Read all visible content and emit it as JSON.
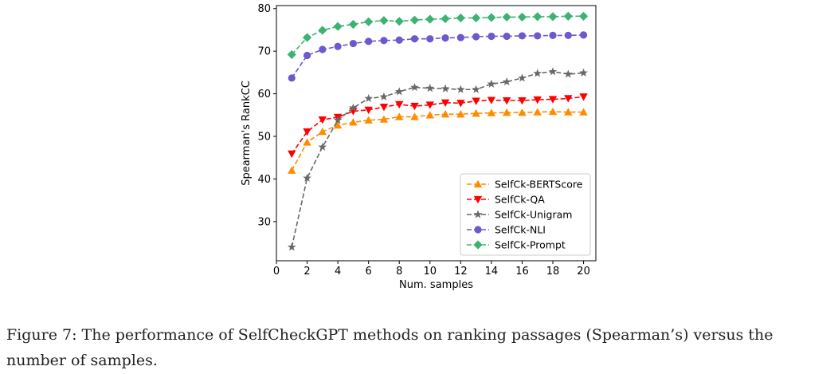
{
  "chart_data": {
    "type": "line",
    "xlabel": "Num. samples",
    "ylabel": "Spearman's RankCC",
    "xlim": [
      0,
      20.8
    ],
    "ylim": [
      20.8,
      80.7
    ],
    "xticks": [
      "0",
      "2",
      "4",
      "6",
      "8",
      "10",
      "12",
      "14",
      "16",
      "18",
      "20"
    ],
    "yticks": [
      "30",
      "40",
      "50",
      "60",
      "70",
      "80"
    ],
    "legend_position": "lower-right",
    "x": [
      1,
      2,
      3,
      4,
      5,
      6,
      7,
      8,
      9,
      10,
      11,
      12,
      13,
      14,
      15,
      16,
      17,
      18,
      19,
      20
    ],
    "series": [
      {
        "name": "SelfCk-BERTScore",
        "color": "#ff8c00",
        "marker": "triangle-up",
        "values": [
          42.0,
          48.6,
          51.1,
          52.6,
          53.3,
          53.8,
          54.0,
          54.6,
          54.6,
          55.0,
          55.2,
          55.2,
          55.4,
          55.5,
          55.6,
          55.6,
          55.7,
          55.8,
          55.7,
          55.7
        ]
      },
      {
        "name": "SelfCk-QA",
        "color": "#ff0000",
        "marker": "triangle-down",
        "values": [
          45.9,
          51.1,
          53.9,
          54.5,
          55.9,
          56.2,
          56.9,
          57.5,
          57.1,
          57.4,
          57.9,
          57.8,
          58.3,
          58.5,
          58.4,
          58.4,
          58.6,
          58.7,
          58.9,
          59.3
        ]
      },
      {
        "name": "SelfCk-Unigram",
        "color": "#696969",
        "marker": "star",
        "values": [
          24.0,
          40.2,
          47.5,
          53.8,
          56.7,
          58.9,
          59.3,
          60.5,
          61.5,
          61.3,
          61.2,
          61.0,
          61.0,
          62.3,
          62.8,
          63.7,
          64.8,
          65.2,
          64.6,
          64.9
        ]
      },
      {
        "name": "SelfCk-NLI",
        "color": "#6a5acd",
        "marker": "circle",
        "values": [
          63.7,
          69.0,
          70.4,
          71.1,
          71.8,
          72.3,
          72.5,
          72.6,
          72.9,
          72.9,
          73.1,
          73.2,
          73.4,
          73.5,
          73.5,
          73.6,
          73.6,
          73.7,
          73.7,
          73.8
        ]
      },
      {
        "name": "SelfCk-Prompt",
        "color": "#3cb371",
        "marker": "diamond",
        "values": [
          69.2,
          73.2,
          74.9,
          75.8,
          76.3,
          76.9,
          77.2,
          77.0,
          77.3,
          77.5,
          77.6,
          77.8,
          77.8,
          77.9,
          78.0,
          78.0,
          78.1,
          78.1,
          78.2,
          78.2
        ]
      }
    ]
  },
  "caption": "Figure 7: The performance of SelfCheckGPT methods on ranking passages (Spearman’s) versus the number of samples."
}
